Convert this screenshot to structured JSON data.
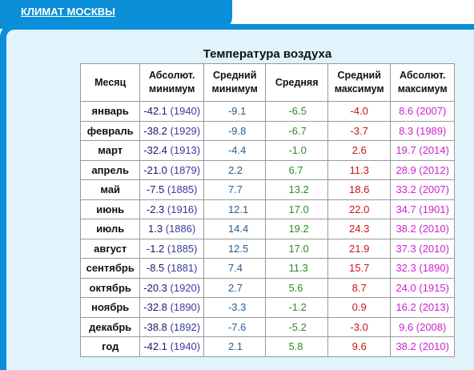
{
  "header": {
    "tab_title": "КЛИМАТ МОСКВЫ"
  },
  "table": {
    "caption": "Температура воздуха",
    "columns": [
      [
        "Месяц"
      ],
      [
        "Абсолют.",
        "минимум"
      ],
      [
        "Средний",
        "минимум"
      ],
      [
        "Средняя"
      ],
      [
        "Средний",
        "максимум"
      ],
      [
        "Абсолют.",
        "максимум"
      ]
    ],
    "rows": [
      {
        "month": "январь",
        "abs_min": "-42.1",
        "abs_min_year": "(1940)",
        "avg_min": "-9.1",
        "avg": "-6.5",
        "avg_max": "-4.0",
        "abs_max": "8.6 (2007)"
      },
      {
        "month": "февраль",
        "abs_min": "-38.2",
        "abs_min_year": "(1929)",
        "avg_min": "-9.8",
        "avg": "-6.7",
        "avg_max": "-3.7",
        "abs_max": "8.3 (1989)"
      },
      {
        "month": "март",
        "abs_min": "-32.4",
        "abs_min_year": "(1913)",
        "avg_min": "-4.4",
        "avg": "-1.0",
        "avg_max": "2.6",
        "abs_max": "19.7 (2014)"
      },
      {
        "month": "апрель",
        "abs_min": "-21.0",
        "abs_min_year": "(1879)",
        "avg_min": "2.2",
        "avg": "6.7",
        "avg_max": "11.3",
        "abs_max": "28.9 (2012)"
      },
      {
        "month": "май",
        "abs_min": "-7.5",
        "abs_min_year": "(1885)",
        "avg_min": "7.7",
        "avg": "13.2",
        "avg_max": "18.6",
        "abs_max": "33.2 (2007)"
      },
      {
        "month": "июнь",
        "abs_min": "-2.3",
        "abs_min_year": "(1916)",
        "avg_min": "12.1",
        "avg": "17.0",
        "avg_max": "22.0",
        "abs_max": "34.7 (1901)"
      },
      {
        "month": "июль",
        "abs_min": "1.3",
        "abs_min_year": "(1886)",
        "avg_min": "14.4",
        "avg": "19.2",
        "avg_max": "24.3",
        "abs_max": "38.2 (2010)"
      },
      {
        "month": "август",
        "abs_min": "-1.2",
        "abs_min_year": "(1885)",
        "avg_min": "12.5",
        "avg": "17.0",
        "avg_max": "21.9",
        "abs_max": "37.3 (2010)"
      },
      {
        "month": "сентябрь",
        "abs_min": "-8.5",
        "abs_min_year": "(1881)",
        "avg_min": "7.4",
        "avg": "11.3",
        "avg_max": "15.7",
        "abs_max": "32.3 (1890)"
      },
      {
        "month": "октябрь",
        "abs_min": "-20.3",
        "abs_min_year": "(1920)",
        "avg_min": "2.7",
        "avg": "5.6",
        "avg_max": "8.7",
        "abs_max": "24.0 (1915)"
      },
      {
        "month": "ноябрь",
        "abs_min": "-32.8",
        "abs_min_year": "(1890)",
        "avg_min": "-3.3",
        "avg": "-1.2",
        "avg_max": "0.9",
        "abs_max": "16.2 (2013)"
      },
      {
        "month": "декабрь",
        "abs_min": "-38.8",
        "abs_min_year": "(1892)",
        "avg_min": "-7.6",
        "avg": "-5.2",
        "avg_max": "-3.0",
        "abs_max": "9.6 (2008)"
      },
      {
        "month": "год",
        "abs_min": "-42.1",
        "abs_min_year": "(1940)",
        "avg_min": "2.1",
        "avg": "5.8",
        "avg_max": "9.6",
        "abs_max": "38.2 (2010)"
      }
    ]
  },
  "colors": {
    "tab_blue": "#0a8fd8",
    "panel_bg": "#e1f3fb",
    "abs_min_text": "#1a1a6e",
    "avg_min_text": "#2a5d8f",
    "avg_text": "#2f8a25",
    "avg_max_text": "#cc1414",
    "abs_max_text": "#d021cf"
  }
}
